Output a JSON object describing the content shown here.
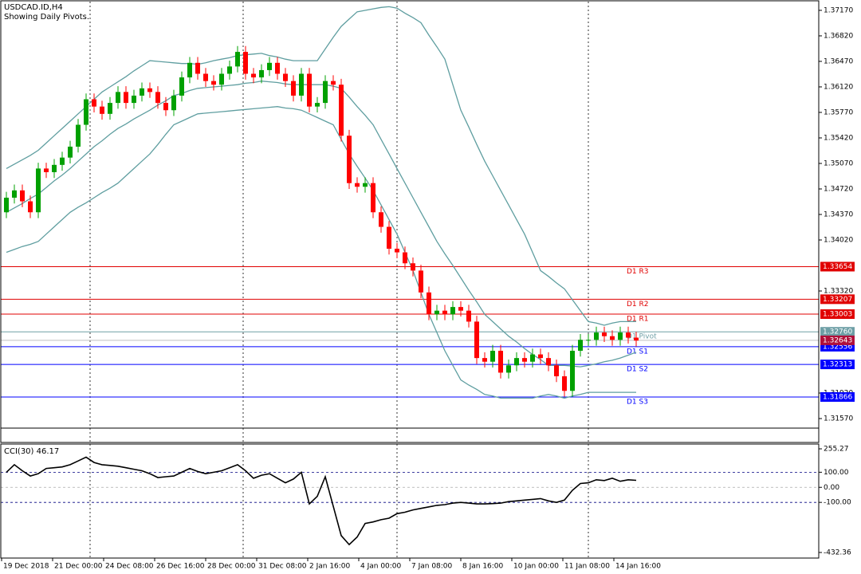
{
  "chart_data": {
    "type": "candlestick",
    "title": "USDCAD.ID,H4",
    "subtitle": "Showing Daily Pivots.",
    "time_labels": [
      "19 Dec 2018",
      "21 Dec 00:00",
      "24 Dec 08:00",
      "26 Dec 16:00",
      "28 Dec 00:00",
      "31 Dec 08:00",
      "2 Jan 16:00",
      "4 Jan 00:00",
      "7 Jan 08:00",
      "8 Jan 16:00",
      "10 Jan 00:00",
      "11 Jan 08:00",
      "14 Jan 16:00"
    ],
    "up_color": "#00a000",
    "down_color": "#ff0000",
    "open": [
      1.344,
      1.346,
      1.347,
      1.3455,
      1.344,
      1.35,
      1.3495,
      1.3505,
      1.3515,
      1.353,
      1.356,
      1.3595,
      1.3585,
      1.3575,
      1.359,
      1.3605,
      1.359,
      1.36,
      1.361,
      1.3605,
      1.359,
      1.358,
      1.36,
      1.3625,
      1.3645,
      1.363,
      1.362,
      1.3615,
      1.363,
      1.364,
      1.366,
      1.363,
      1.3625,
      1.3635,
      1.3645,
      1.363,
      1.362,
      1.36,
      1.363,
      1.3585,
      1.359,
      1.362,
      1.3615,
      1.3545,
      1.348,
      1.3475,
      1.348,
      1.344,
      1.342,
      1.339,
      1.3385,
      1.337,
      1.336,
      1.333,
      1.33,
      1.3305,
      1.33,
      1.331,
      1.3305,
      1.329,
      1.324,
      1.3235,
      1.325,
      1.322,
      1.323,
      1.324,
      1.3235,
      1.3245,
      1.324,
      1.323,
      1.3215,
      1.3195,
      1.325,
      1.3265,
      1.3265,
      1.3275,
      1.327,
      1.3265,
      1.3275,
      1.3268
    ],
    "high": [
      1.3468,
      1.3478,
      1.3478,
      1.3463,
      1.3508,
      1.3508,
      1.3513,
      1.3523,
      1.3538,
      1.3568,
      1.3603,
      1.3603,
      1.3593,
      1.3598,
      1.3613,
      1.3613,
      1.3608,
      1.3618,
      1.3618,
      1.3613,
      1.3598,
      1.3608,
      1.3633,
      1.3653,
      1.3653,
      1.3638,
      1.3628,
      1.3638,
      1.3648,
      1.3668,
      1.3668,
      1.3638,
      1.3643,
      1.3653,
      1.3653,
      1.3638,
      1.3628,
      1.3638,
      1.3638,
      1.3598,
      1.3628,
      1.3628,
      1.3623,
      1.3553,
      1.3488,
      1.3488,
      1.3488,
      1.3448,
      1.3428,
      1.3398,
      1.3393,
      1.3378,
      1.3368,
      1.3338,
      1.3313,
      1.3313,
      1.3318,
      1.3318,
      1.3313,
      1.3298,
      1.3248,
      1.3258,
      1.3258,
      1.3238,
      1.3248,
      1.3248,
      1.3253,
      1.3253,
      1.3248,
      1.3238,
      1.3223,
      1.3258,
      1.3273,
      1.3273,
      1.3283,
      1.3283,
      1.3278,
      1.3283,
      1.3283,
      1.3276
    ],
    "low": [
      1.3432,
      1.3452,
      1.3447,
      1.3432,
      1.3432,
      1.3487,
      1.3487,
      1.3497,
      1.3507,
      1.3522,
      1.3552,
      1.3577,
      1.3567,
      1.3567,
      1.3582,
      1.3582,
      1.3582,
      1.3592,
      1.3597,
      1.3582,
      1.3572,
      1.3572,
      1.3592,
      1.3617,
      1.3622,
      1.3612,
      1.3607,
      1.3607,
      1.3622,
      1.3632,
      1.3622,
      1.3617,
      1.3617,
      1.3627,
      1.3622,
      1.3612,
      1.3592,
      1.3592,
      1.3577,
      1.3577,
      1.3582,
      1.3607,
      1.3537,
      1.3472,
      1.3467,
      1.3467,
      1.3432,
      1.3412,
      1.3382,
      1.3377,
      1.3362,
      1.3352,
      1.3322,
      1.3292,
      1.3292,
      1.3292,
      1.3292,
      1.3297,
      1.3282,
      1.3232,
      1.3227,
      1.3227,
      1.3212,
      1.3212,
      1.3222,
      1.3227,
      1.3227,
      1.3232,
      1.3222,
      1.3207,
      1.3187,
      1.3187,
      1.3242,
      1.3257,
      1.3257,
      1.3262,
      1.3257,
      1.3257,
      1.326,
      1.3256
    ],
    "close": [
      1.346,
      1.347,
      1.3455,
      1.344,
      1.35,
      1.3495,
      1.3505,
      1.3515,
      1.353,
      1.356,
      1.3595,
      1.3585,
      1.3575,
      1.359,
      1.3605,
      1.359,
      1.36,
      1.361,
      1.3605,
      1.359,
      1.358,
      1.36,
      1.3625,
      1.3645,
      1.363,
      1.362,
      1.3615,
      1.363,
      1.364,
      1.366,
      1.363,
      1.3625,
      1.3635,
      1.3645,
      1.363,
      1.362,
      1.36,
      1.363,
      1.3585,
      1.359,
      1.362,
      1.3615,
      1.3545,
      1.348,
      1.3475,
      1.348,
      1.344,
      1.342,
      1.339,
      1.3385,
      1.337,
      1.336,
      1.333,
      1.33,
      1.3305,
      1.33,
      1.331,
      1.3305,
      1.329,
      1.324,
      1.3235,
      1.325,
      1.322,
      1.323,
      1.324,
      1.3235,
      1.3245,
      1.324,
      1.323,
      1.3215,
      1.3195,
      1.325,
      1.3265,
      1.3265,
      1.3275,
      1.327,
      1.3265,
      1.3275,
      1.3268,
      1.3264
    ],
    "bands": {
      "color": "#5f9ea0",
      "upper": [
        1.35,
        1.3506,
        1.3512,
        1.3518,
        1.3525,
        1.3535,
        1.3545,
        1.3555,
        1.3565,
        1.3575,
        1.3585,
        1.3595,
        1.3605,
        1.3612,
        1.3619,
        1.3626,
        1.3634,
        1.3641,
        1.3648,
        1.3647,
        1.3646,
        1.3645,
        1.3644,
        1.3644,
        1.3643,
        1.3645,
        1.3648,
        1.365,
        1.3652,
        1.3655,
        1.3656,
        1.3657,
        1.3658,
        1.3655,
        1.3653,
        1.365,
        1.3648,
        1.3648,
        1.3648,
        1.3648,
        1.3664,
        1.368,
        1.3695,
        1.3705,
        1.3715,
        1.3717,
        1.3719,
        1.3721,
        1.3722,
        1.372,
        1.3713,
        1.3707,
        1.37,
        1.3683,
        1.3667,
        1.365,
        1.3615,
        1.358,
        1.3557,
        1.3533,
        1.351,
        1.349,
        1.347,
        1.345,
        1.343,
        1.341,
        1.3385,
        1.336,
        1.3352,
        1.3343,
        1.3335,
        1.332,
        1.3305,
        1.329,
        1.3288,
        1.3285,
        1.3288,
        1.329,
        1.329,
        1.329
      ],
      "middle": [
        1.344,
        1.3446,
        1.3452,
        1.3459,
        1.3465,
        1.3474,
        1.3483,
        1.3491,
        1.35,
        1.351,
        1.352,
        1.353,
        1.3538,
        1.3547,
        1.3555,
        1.3561,
        1.3568,
        1.3574,
        1.358,
        1.3587,
        1.3593,
        1.36,
        1.3603,
        1.3607,
        1.361,
        1.3611,
        1.3612,
        1.3613,
        1.3614,
        1.3615,
        1.3617,
        1.3618,
        1.362,
        1.3619,
        1.3618,
        1.3616,
        1.3615,
        1.3615,
        1.3615,
        1.3615,
        1.3615,
        1.3613,
        1.361,
        1.3598,
        1.3585,
        1.3573,
        1.356,
        1.354,
        1.352,
        1.35,
        1.348,
        1.346,
        1.344,
        1.342,
        1.34,
        1.3383,
        1.3367,
        1.335,
        1.3333,
        1.3317,
        1.33,
        1.329,
        1.328,
        1.327,
        1.3262,
        1.3253,
        1.3245,
        1.3238,
        1.323,
        1.323,
        1.323,
        1.3229,
        1.3228,
        1.323,
        1.3232,
        1.3235,
        1.3237,
        1.324,
        1.3244,
        1.3248
      ],
      "lower": [
        1.3385,
        1.3389,
        1.3393,
        1.3396,
        1.34,
        1.341,
        1.342,
        1.343,
        1.344,
        1.3447,
        1.3453,
        1.346,
        1.3467,
        1.3473,
        1.348,
        1.349,
        1.35,
        1.351,
        1.352,
        1.3533,
        1.3547,
        1.356,
        1.3565,
        1.357,
        1.3575,
        1.3576,
        1.3577,
        1.3578,
        1.3579,
        1.358,
        1.3581,
        1.3582,
        1.3583,
        1.3584,
        1.3585,
        1.3583,
        1.3582,
        1.358,
        1.3575,
        1.357,
        1.3565,
        1.356,
        1.354,
        1.352,
        1.3503,
        1.3487,
        1.347,
        1.345,
        1.343,
        1.341,
        1.3385,
        1.336,
        1.333,
        1.33,
        1.3275,
        1.325,
        1.323,
        1.321,
        1.3203,
        1.3197,
        1.319,
        1.3188,
        1.3185,
        1.3185,
        1.3185,
        1.3185,
        1.3185,
        1.3188,
        1.319,
        1.3188,
        1.3185,
        1.3188,
        1.319,
        1.3193,
        1.3193,
        1.3193,
        1.3193,
        1.3193,
        1.3193,
        1.3193
      ]
    },
    "ylim": [
      1.31439,
      1.37279
    ],
    "yticks": [
      {
        "value": 1.3717,
        "label": "1.37170"
      },
      {
        "value": 1.3682,
        "label": "1.36820"
      },
      {
        "value": 1.3647,
        "label": "1.36470"
      },
      {
        "value": 1.3612,
        "label": "1.36120"
      },
      {
        "value": 1.3577,
        "label": "1.35770"
      },
      {
        "value": 1.3542,
        "label": "1.35420"
      },
      {
        "value": 1.3507,
        "label": "1.35070"
      },
      {
        "value": 1.3472,
        "label": "1.34720"
      },
      {
        "value": 1.3437,
        "label": "1.34370"
      },
      {
        "value": 1.3402,
        "label": "1.34020"
      },
      {
        "value": 1.3332,
        "label": "1.33320"
      },
      {
        "value": 1.3192,
        "label": "1.31920"
      },
      {
        "value": 1.3157,
        "label": "1.31570"
      }
    ],
    "pivots": [
      {
        "name": "D1 R3",
        "value": 1.33654,
        "color": "#e00000"
      },
      {
        "name": "D1 R2",
        "value": 1.33207,
        "color": "#e00000"
      },
      {
        "name": "D1 R1",
        "value": 1.33003,
        "color": "#e00000"
      },
      {
        "name": "D1 Pivot",
        "value": 1.3276,
        "label": "1.32760",
        "color": "#6e9fa6"
      },
      {
        "name": "D1 S1",
        "value": 1.32556,
        "color": "#0000ff"
      },
      {
        "name": "D1 S2",
        "value": 1.32313,
        "color": "#0000ff"
      },
      {
        "name": "D1 S3",
        "value": 1.31866,
        "color": "#0000ff"
      }
    ],
    "current_price": {
      "value": 1.32643,
      "color": "#b0103a"
    },
    "cci": {
      "title": "CCI(30) 46.17",
      "color": "#000000",
      "values": [
        100,
        150,
        110,
        75,
        90,
        125,
        130,
        135,
        150,
        175,
        200,
        165,
        150,
        145,
        140,
        130,
        120,
        110,
        90,
        65,
        70,
        75,
        100,
        125,
        105,
        90,
        100,
        110,
        130,
        150,
        110,
        60,
        80,
        90,
        60,
        30,
        55,
        100,
        -110,
        -60,
        70,
        -125,
        -320,
        -380,
        -330,
        -240,
        -230,
        -215,
        -205,
        -175,
        -165,
        -150,
        -140,
        -130,
        -120,
        -115,
        -105,
        -100,
        -105,
        -110,
        -110,
        -108,
        -105,
        -95,
        -90,
        -85,
        -80,
        -75,
        -90,
        -100,
        -85,
        -20,
        25,
        30,
        50,
        45,
        60,
        40,
        50,
        46.17
      ],
      "ylim": [
        -432.36,
        255.27
      ],
      "yticks": [
        {
          "value": 255.27,
          "label": "255.27"
        },
        {
          "value": 100,
          "label": "100.00"
        },
        {
          "value": 0,
          "label": "0.00"
        },
        {
          "value": -100,
          "label": "-100.00"
        },
        {
          "value": -432.36,
          "label": "-432.36"
        }
      ]
    }
  }
}
